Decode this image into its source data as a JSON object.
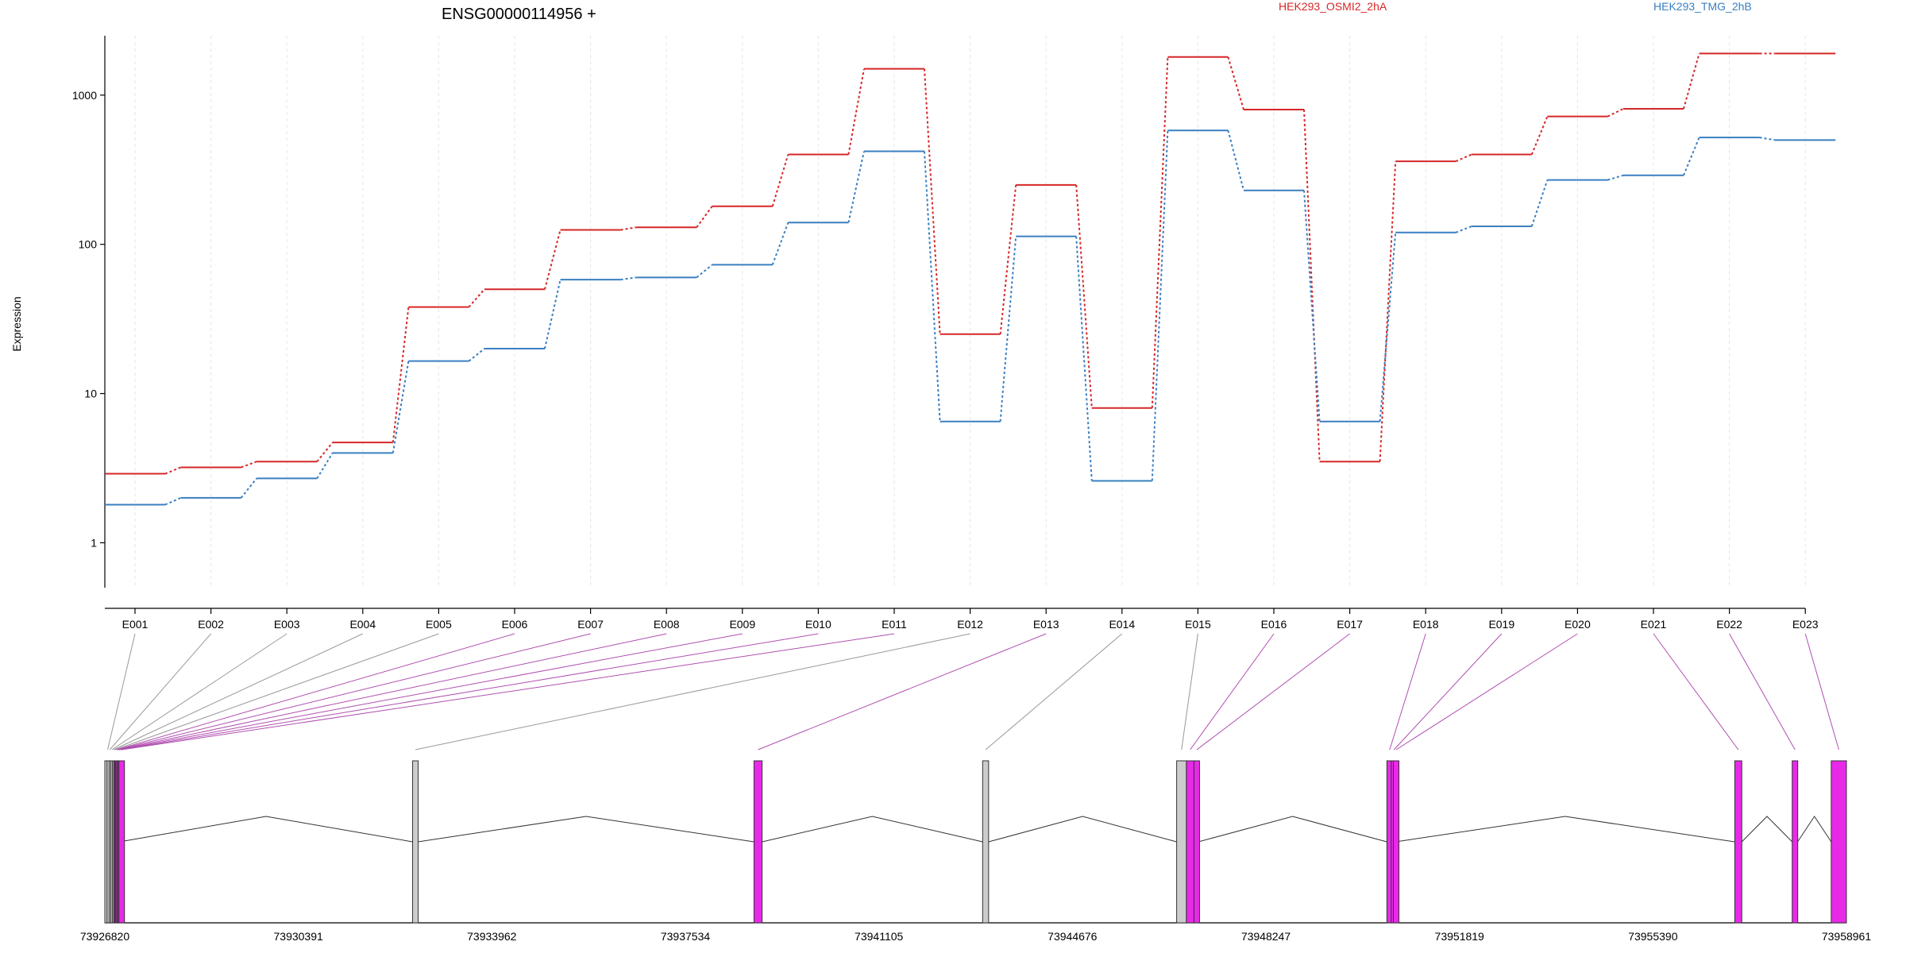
{
  "chart_data": {
    "type": "line",
    "title": "ENSG00000114956 +",
    "ylabel": "Expression",
    "yscale": "log",
    "ylim": [
      0.5,
      2500
    ],
    "yticks": [
      1,
      10,
      100,
      1000
    ],
    "ytick_labels": [
      "1",
      "10",
      "100",
      "1000"
    ],
    "categories": [
      "E001",
      "E002",
      "E003",
      "E004",
      "E005",
      "E006",
      "E007",
      "E008",
      "E009",
      "E010",
      "E011",
      "E012",
      "E013",
      "E014",
      "E015",
      "E016",
      "E017",
      "E018",
      "E019",
      "E020",
      "E021",
      "E022",
      "E023"
    ],
    "series": [
      {
        "name": "HEK293_OSMI2_2hA",
        "color": "#d62728",
        "values": [
          2.9,
          3.2,
          3.5,
          4.7,
          38,
          50,
          125,
          130,
          180,
          400,
          1500,
          25,
          250,
          8,
          1800,
          800,
          3.5,
          360,
          400,
          720,
          810,
          1900,
          1900
        ]
      },
      {
        "name": "HEK293_TMG_2hB",
        "color": "#3a7fc1",
        "values": [
          1.8,
          2.0,
          2.7,
          4.0,
          16.5,
          20,
          58,
          60,
          73,
          140,
          420,
          6.5,
          113,
          2.6,
          580,
          230,
          6.5,
          120,
          132,
          270,
          290,
          520,
          500
        ]
      }
    ],
    "genomic_ticks": [
      "73926820",
      "73930391",
      "73933962",
      "73937534",
      "73941105",
      "73944676",
      "73948247",
      "73951819",
      "73955390",
      "73958961"
    ],
    "genomic_range": [
      73926820,
      73958961
    ],
    "exon_type_colors": {
      "pink": "#e829e8",
      "gray": "#cccccc"
    },
    "exons": [
      {
        "id": "E001",
        "type": "gray",
        "start": 73926820,
        "end": 73926860
      },
      {
        "id": "E002",
        "type": "gray",
        "start": 73926860,
        "end": 73926900
      },
      {
        "id": "E003",
        "type": "gray",
        "start": 73926900,
        "end": 73926930
      },
      {
        "id": "E004",
        "type": "gray",
        "start": 73926930,
        "end": 73926960
      },
      {
        "id": "E005",
        "type": "gray",
        "start": 73926960,
        "end": 73926985
      },
      {
        "id": "E006",
        "type": "pink",
        "start": 73926985,
        "end": 73927000
      },
      {
        "id": "E007",
        "type": "pink",
        "start": 73927000,
        "end": 73927020
      },
      {
        "id": "E008",
        "type": "pink",
        "start": 73927020,
        "end": 73927040
      },
      {
        "id": "E009",
        "type": "pink",
        "start": 73927040,
        "end": 73927060
      },
      {
        "id": "E010",
        "type": "pink",
        "start": 73927060,
        "end": 73927080
      },
      {
        "id": "E011",
        "type": "pink",
        "start": 73927080,
        "end": 73927090
      },
      {
        "id": "E012",
        "type": "gray",
        "start": 73932500,
        "end": 73932600
      },
      {
        "id": "E013",
        "type": "pink",
        "start": 73938800,
        "end": 73938950
      },
      {
        "id": "E014",
        "type": "gray",
        "start": 73943020,
        "end": 73943130
      },
      {
        "id": "E015",
        "type": "gray",
        "start": 73946600,
        "end": 73946780
      },
      {
        "id": "E016",
        "type": "pink",
        "start": 73946780,
        "end": 73946920
      },
      {
        "id": "E017",
        "type": "pink",
        "start": 73946920,
        "end": 73947000
      },
      {
        "id": "E018",
        "type": "pink",
        "start": 73950480,
        "end": 73950560
      },
      {
        "id": "E019",
        "type": "pink",
        "start": 73950560,
        "end": 73950600
      },
      {
        "id": "E020",
        "type": "pink",
        "start": 73950600,
        "end": 73950640
      },
      {
        "id": "E021",
        "type": "pink",
        "start": 73956900,
        "end": 73957030
      },
      {
        "id": "E022",
        "type": "pink",
        "start": 73957960,
        "end": 73958060
      },
      {
        "id": "E023",
        "type": "pink",
        "start": 73958680,
        "end": 73958961
      }
    ]
  }
}
